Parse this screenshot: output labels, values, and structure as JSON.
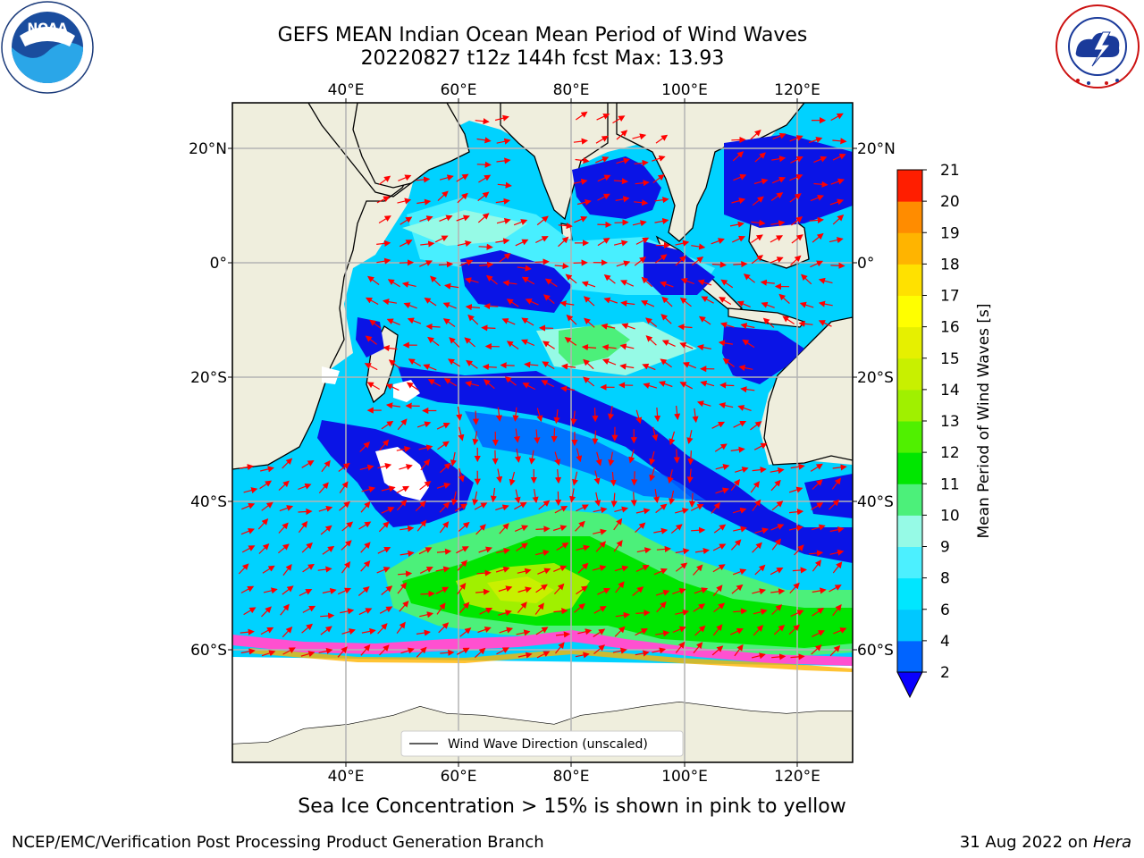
{
  "title": {
    "line1": "GEFS MEAN Indian Ocean Mean Period of Wind Waves",
    "line2": "20220827 t12z 144h fcst   Max: 13.93"
  },
  "logos": {
    "noaa": "NOAA",
    "noaa_ring": "NATIONAL OCEANIC AND ATMOSPHERIC ADMINISTRATION · U.S. DEPARTMENT OF COMMERCE",
    "nws_ring": "NATIONAL WEATHER SERVICE"
  },
  "axes": {
    "lon_labels": [
      "40°E",
      "60°E",
      "80°E",
      "100°E",
      "120°E"
    ],
    "lat_labels": [
      "20°N",
      "0°",
      "20°S",
      "40°S",
      "60°S"
    ]
  },
  "colorbar": {
    "label": "Mean Period of Wind Waves [s]",
    "ticks": [
      "2",
      "4",
      "6",
      "8",
      "9",
      "10",
      "11",
      "12",
      "13",
      "14",
      "15",
      "16",
      "17",
      "18",
      "19",
      "20",
      "21"
    ],
    "colors": [
      "#0064ff",
      "#00c8ff",
      "#00e6ff",
      "#4cf0ff",
      "#96fae6",
      "#4cf07a",
      "#00e600",
      "#50f000",
      "#a0f000",
      "#c8f000",
      "#e6f000",
      "#ffff00",
      "#ffe100",
      "#ffb400",
      "#ff8c00",
      "#ff5000",
      "#ff1e00"
    ],
    "extend_color": "#0a00ff"
  },
  "legend": {
    "label": "Wind Wave Direction (unscaled)"
  },
  "bottom_note": "Sea Ice Concentration > 15% is shown in pink to yellow",
  "footer": {
    "left": "NCEP/EMC/Verification Post Processing Product Generation Branch",
    "date": "31 Aug 2022 on ",
    "machine": "Hera"
  },
  "colors": {
    "land": "#efeedd",
    "ocean_deep": "#0a14e6",
    "arrow": "#ff0000",
    "ice_pink": "#ff50d0",
    "grid": "#b4b4b4"
  }
}
